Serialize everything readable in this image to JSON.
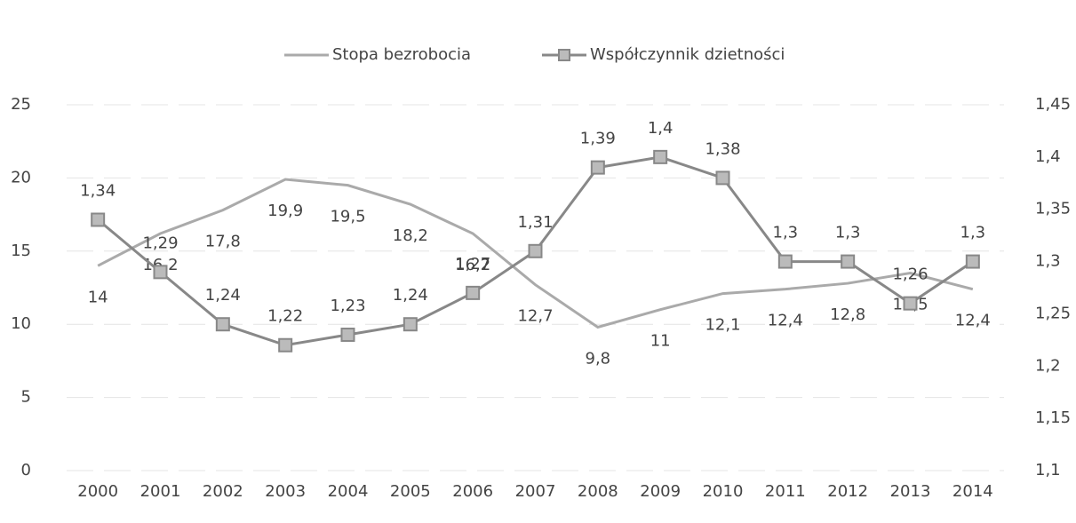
{
  "chart_data": {
    "type": "line",
    "categories": [
      "2000",
      "2001",
      "2002",
      "2003",
      "2004",
      "2005",
      "2006",
      "2007",
      "2008",
      "2009",
      "2010",
      "2011",
      "2012",
      "2013",
      "2014"
    ],
    "series": [
      {
        "name": "Stopa bezrobocia",
        "color": "#aaaaaa",
        "values": [
          14,
          16.2,
          17.8,
          19.9,
          19.5,
          18.2,
          16.2,
          12.7,
          9.8,
          11,
          12.1,
          12.4,
          12.8,
          13.5,
          12.4
        ],
        "value_labels": [
          "14",
          "16,2",
          "17,8",
          "19,9",
          "19,5",
          "18,2",
          "16,2",
          "12,7",
          "9,8",
          "11",
          "12,1",
          "12,4",
          "12,8",
          "13,5",
          "12,4"
        ]
      },
      {
        "name": "Współczynnik dzietności",
        "color": "#888888",
        "axis": "y2",
        "values": [
          1.34,
          1.29,
          1.24,
          1.22,
          1.23,
          1.24,
          1.27,
          1.31,
          1.39,
          1.4,
          1.38,
          1.3,
          1.3,
          1.26,
          1.3
        ],
        "value_labels": [
          "1,34",
          "1,29",
          "1,24",
          "1,22",
          "1,23",
          "1,24",
          "1,27",
          "1,31",
          "1,39",
          "1,4",
          "1,38",
          "1,3",
          "1,3",
          "1,26",
          "1,3"
        ]
      }
    ],
    "ylim": [
      0,
      25
    ],
    "yticks": [
      0,
      5,
      10,
      15,
      20,
      25
    ],
    "y2lim": [
      1.1,
      1.45
    ],
    "y2ticks": [
      {
        "value": 1.1,
        "label": "1,1"
      },
      {
        "value": 1.15,
        "label": "1,15"
      },
      {
        "value": 1.2,
        "label": "1,2"
      },
      {
        "value": 1.25,
        "label": "1,25"
      },
      {
        "value": 1.3,
        "label": "1,3"
      },
      {
        "value": 1.35,
        "label": "1,35"
      },
      {
        "value": 1.4,
        "label": "1,4"
      },
      {
        "value": 1.45,
        "label": "1,45"
      }
    ],
    "grid": true,
    "legend": "top"
  }
}
